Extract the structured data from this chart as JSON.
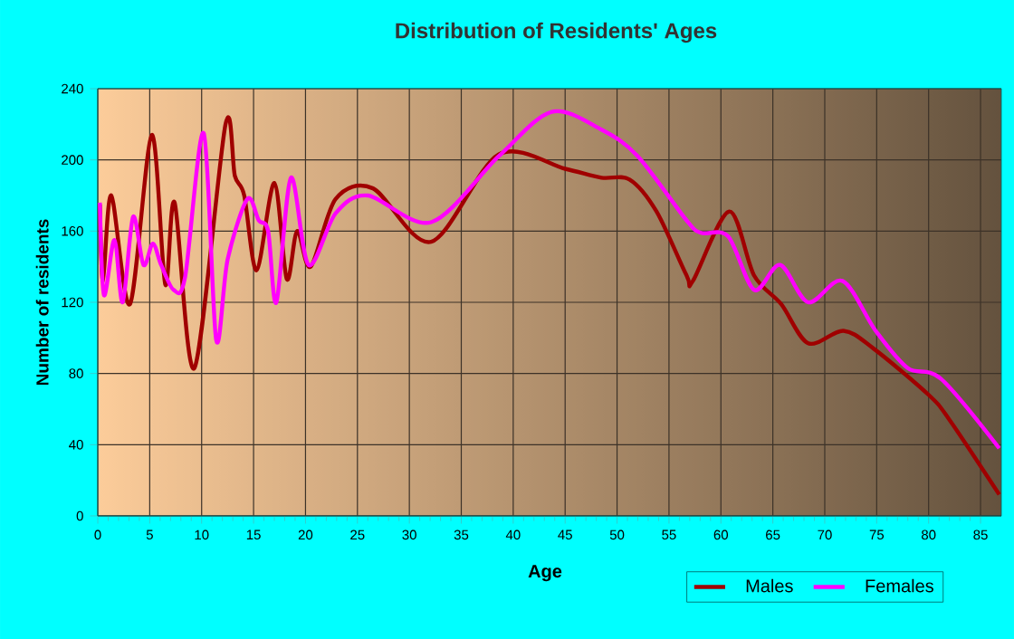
{
  "chart_data": {
    "type": "line",
    "title": "Distribution of Residents' Ages",
    "xlabel": "Age",
    "ylabel": "Number of residents",
    "xlim": [
      0,
      87
    ],
    "xticks": [
      0,
      5,
      10,
      15,
      20,
      25,
      30,
      35,
      40,
      45,
      50,
      55,
      60,
      65,
      70,
      75,
      80,
      85
    ],
    "ylim": [
      0,
      240
    ],
    "yticks": [
      0,
      40,
      80,
      120,
      160,
      200,
      240
    ],
    "grid": true,
    "legend": "bottom right",
    "marker": "none",
    "line_style": "solid",
    "series": [
      {
        "name": "Males",
        "color": "#a00000",
        "x": [
          0.2,
          0.5,
          1.3,
          3.1,
          5.2,
          6.5,
          7.4,
          9.3,
          12.3,
          13.2,
          14.1,
          15.3,
          17,
          18.2,
          19.2,
          20.5,
          22.9,
          26.5,
          32.1,
          38.6,
          45,
          48.5,
          51.2,
          53.8,
          56.7,
          57.3,
          60.8,
          63.2,
          65.8,
          68.4,
          71.8,
          74.7,
          80,
          82,
          86.8
        ],
        "values": [
          175,
          132,
          180,
          119,
          214,
          130,
          176,
          83,
          220,
          191,
          180,
          138,
          187,
          133,
          160,
          140,
          178,
          184,
          154,
          203,
          195,
          190,
          189,
          171,
          135,
          132,
          171,
          135,
          119,
          97,
          104,
          94,
          68,
          54,
          12
        ]
      },
      {
        "name": "Females",
        "color": "#ff00ff",
        "x": [
          0.2,
          0.6,
          1.6,
          2.4,
          3.4,
          4.4,
          5.3,
          6.1,
          7.3,
          8.4,
          10.2,
          11.4,
          12.5,
          14.4,
          15.5,
          16.4,
          17.2,
          18.6,
          20.3,
          22.9,
          26,
          32.1,
          38.6,
          43.7,
          48.5,
          52,
          56.7,
          58.1,
          60.7,
          63.2,
          65.7,
          68.4,
          71.7,
          74.9,
          78,
          81.2,
          86.8
        ],
        "values": [
          176,
          124,
          155,
          120,
          168,
          141,
          153,
          141,
          127,
          134,
          215,
          99,
          144,
          178,
          166,
          160,
          120,
          190,
          141,
          170,
          180,
          165,
          202,
          227,
          217,
          202,
          166,
          159,
          157,
          127,
          141,
          120,
          132,
          104,
          83,
          77,
          38
        ]
      }
    ]
  }
}
